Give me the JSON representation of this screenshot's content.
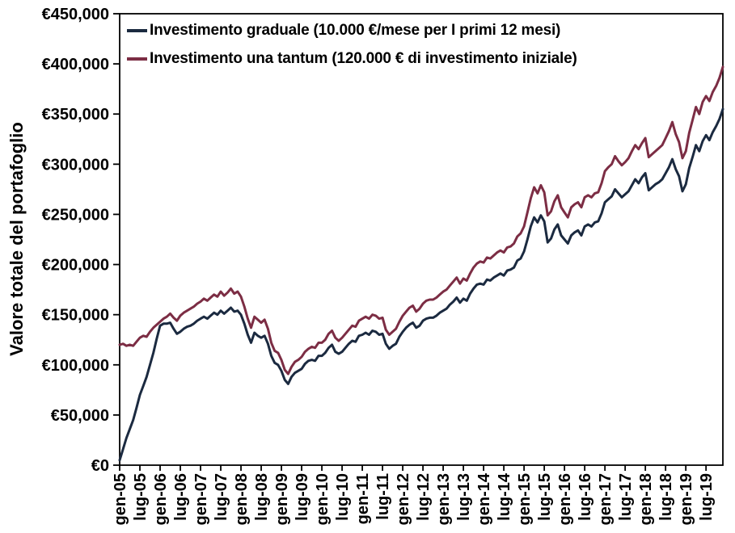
{
  "chart": {
    "y_axis_title": "Valore totale del portafoglio",
    "legend": [
      {
        "label": "Investimento graduale (10.000 €/mese per I primi 12 mesi)"
      },
      {
        "label": "Investimento una tantum (120.000 € di investimento iniziale)"
      }
    ]
  },
  "chart_data": {
    "type": "line",
    "title": "",
    "xlabel": "",
    "ylabel": "Valore totale del portafoglio",
    "x_unit": "month",
    "x_start": "gen-05",
    "x_end": "dic-19",
    "x_tick_every_months": 6,
    "x_tick_labels": [
      "gen-05",
      "lug-05",
      "gen-06",
      "lug-06",
      "gen-07",
      "lug-07",
      "gen-08",
      "lug-08",
      "gen-09",
      "lug-09",
      "gen-10",
      "lug-10",
      "gen-11",
      "lug-11",
      "gen-12",
      "lug-12",
      "gen-13",
      "lug-13",
      "gen-14",
      "lug-14",
      "gen-15",
      "lug-15",
      "gen-16",
      "lug-16",
      "gen-17",
      "lug-17",
      "gen-18",
      "lug-18",
      "gen-19",
      "lug-19"
    ],
    "ylim": [
      0,
      450000
    ],
    "y_ticks": [
      0,
      50000,
      100000,
      150000,
      200000,
      250000,
      300000,
      350000,
      400000,
      450000
    ],
    "y_tick_labels": [
      "€0",
      "€50,000",
      "€100,000",
      "€150,000",
      "€200,000",
      "€250,000",
      "€300,000",
      "€350,000",
      "€400,000",
      "€450,000"
    ],
    "grid": false,
    "legend_position": "top-left-inside",
    "series": [
      {
        "name": "Investimento graduale (10.000 €/mese per I primi 12 mesi)",
        "color": "#1b2a40",
        "values": [
          5000,
          16000,
          27000,
          36000,
          45000,
          57000,
          70000,
          79000,
          88000,
          100000,
          112000,
          126000,
          139000,
          141000,
          141000,
          142000,
          136000,
          131000,
          133000,
          136000,
          138000,
          139000,
          141000,
          144000,
          146000,
          148000,
          146000,
          149000,
          152000,
          150000,
          154000,
          151000,
          154000,
          157000,
          153000,
          154000,
          150000,
          141000,
          130000,
          122000,
          132000,
          129000,
          127000,
          129000,
          121000,
          109000,
          102000,
          100000,
          94000,
          85000,
          81000,
          88000,
          92000,
          94000,
          96000,
          101000,
          104000,
          105000,
          104000,
          109000,
          109000,
          112000,
          117000,
          120000,
          113000,
          111000,
          113000,
          117000,
          121000,
          124000,
          123000,
          129000,
          130000,
          132000,
          130000,
          134000,
          133000,
          130000,
          131000,
          121000,
          116000,
          119000,
          121000,
          128000,
          133000,
          137000,
          140000,
          142000,
          137000,
          139000,
          144000,
          146000,
          147000,
          147000,
          149000,
          152000,
          154000,
          156000,
          160000,
          163000,
          167000,
          162000,
          166000,
          164000,
          171000,
          176000,
          180000,
          181000,
          180000,
          185000,
          184000,
          187000,
          189000,
          191000,
          189000,
          194000,
          195000,
          197000,
          204000,
          206000,
          213000,
          225000,
          238000,
          247000,
          242000,
          249000,
          243000,
          222000,
          226000,
          235000,
          240000,
          229000,
          225000,
          221000,
          229000,
          232000,
          234000,
          229000,
          238000,
          240000,
          238000,
          242000,
          243000,
          251000,
          262000,
          265000,
          268000,
          275000,
          271000,
          267000,
          270000,
          273000,
          279000,
          285000,
          281000,
          287000,
          291000,
          274000,
          277000,
          280000,
          282000,
          285000,
          291000,
          297000,
          305000,
          295000,
          288000,
          273000,
          280000,
          296000,
          307000,
          319000,
          313000,
          323000,
          329000,
          324000,
          332000,
          338000,
          345000,
          355000
        ]
      },
      {
        "name": "Investimento una tantum (120.000 € di investimento iniziale)",
        "color": "#7c2d44",
        "values": [
          120000,
          121000,
          119000,
          120000,
          119000,
          123000,
          127000,
          129000,
          128000,
          133000,
          137000,
          140000,
          143000,
          146000,
          148000,
          151000,
          147000,
          144000,
          149000,
          152000,
          154000,
          156000,
          158000,
          161000,
          163000,
          166000,
          164000,
          167000,
          170000,
          168000,
          173000,
          169000,
          172000,
          176000,
          171000,
          173000,
          168000,
          158000,
          146000,
          137000,
          148000,
          145000,
          142000,
          145000,
          136000,
          122000,
          114000,
          112000,
          105000,
          95000,
          91000,
          98000,
          103000,
          105000,
          108000,
          113000,
          116000,
          118000,
          117000,
          122000,
          122000,
          125000,
          131000,
          134000,
          127000,
          124000,
          127000,
          131000,
          135000,
          139000,
          138000,
          144000,
          146000,
          148000,
          146000,
          150000,
          149000,
          146000,
          147000,
          135000,
          130000,
          133000,
          136000,
          143000,
          149000,
          153000,
          157000,
          159000,
          153000,
          156000,
          161000,
          164000,
          165000,
          165000,
          167000,
          170000,
          173000,
          175000,
          179000,
          183000,
          187000,
          181000,
          186000,
          184000,
          191000,
          197000,
          201000,
          203000,
          202000,
          207000,
          206000,
          209000,
          212000,
          214000,
          212000,
          217000,
          218000,
          221000,
          228000,
          231000,
          238000,
          252000,
          266000,
          277000,
          271000,
          279000,
          272000,
          249000,
          253000,
          263000,
          269000,
          257000,
          252000,
          247000,
          257000,
          260000,
          262000,
          257000,
          267000,
          269000,
          267000,
          271000,
          272000,
          281000,
          293000,
          297000,
          300000,
          308000,
          303000,
          299000,
          302000,
          306000,
          313000,
          319000,
          315000,
          321000,
          326000,
          307000,
          310000,
          313000,
          316000,
          319000,
          326000,
          333000,
          342000,
          330000,
          322000,
          306000,
          313000,
          331000,
          344000,
          357000,
          350000,
          362000,
          368000,
          363000,
          372000,
          378000,
          386000,
          397000
        ]
      }
    ]
  }
}
